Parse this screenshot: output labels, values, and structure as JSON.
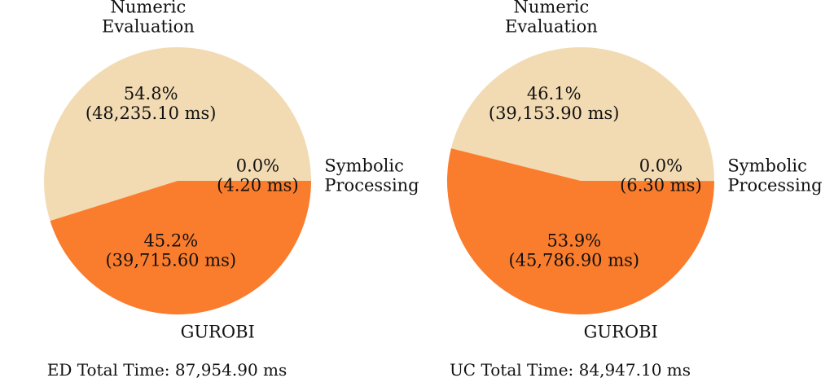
{
  "chart_data": [
    {
      "type": "pie",
      "title": "",
      "total_label": "ED Total Time: 87,954.90 ms",
      "slices": [
        {
          "name": "Numeric Evaluation",
          "label_lines": [
            "Numeric",
            "Evaluation"
          ],
          "percent": 54.8,
          "percent_text": "54.8%",
          "value_text": "(48,235.10 ms)",
          "value_ms": 48235.1,
          "color": "#f2dbb3"
        },
        {
          "name": "GUROBI",
          "label_lines": [
            "GUROBI"
          ],
          "percent": 45.2,
          "percent_text": "45.2%",
          "value_text": "(39,715.60 ms)",
          "value_ms": 39715.6,
          "color": "#fa7c2d"
        },
        {
          "name": "Symbolic Processing",
          "label_lines": [
            "Symbolic",
            "Processing"
          ],
          "percent": 0.0,
          "percent_text": "0.0%",
          "value_text": "(4.20 ms)",
          "value_ms": 4.2,
          "color": "#fdb47a"
        }
      ]
    },
    {
      "type": "pie",
      "title": "",
      "total_label": "UC Total Time: 84,947.10 ms",
      "slices": [
        {
          "name": "Numeric Evaluation",
          "label_lines": [
            "Numeric",
            "Evaluation"
          ],
          "percent": 46.1,
          "percent_text": "46.1%",
          "value_text": "(39,153.90 ms)",
          "value_ms": 39153.9,
          "color": "#f2dbb3"
        },
        {
          "name": "GUROBI",
          "label_lines": [
            "GUROBI"
          ],
          "percent": 53.9,
          "percent_text": "53.9%",
          "value_text": "(45,786.90 ms)",
          "value_ms": 45786.9,
          "color": "#fa7c2d"
        },
        {
          "name": "Symbolic Processing",
          "label_lines": [
            "Symbolic",
            "Processing"
          ],
          "percent": 0.0,
          "percent_text": "0.0%",
          "value_text": "(6.30 ms)",
          "value_ms": 6.3,
          "color": "#fdb47a"
        }
      ]
    }
  ]
}
